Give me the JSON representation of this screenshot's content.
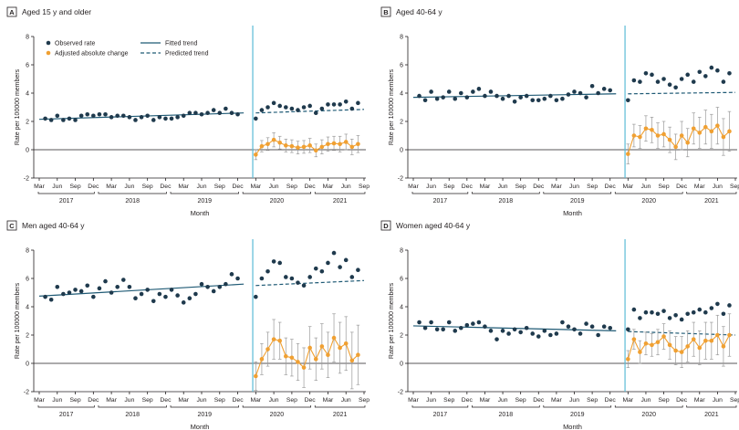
{
  "figure": {
    "legend": {
      "observed": "Observed rate",
      "adjusted": "Adjusted absolute change",
      "fitted": "Fitted trend",
      "predicted": "Predicted trend"
    },
    "colors": {
      "observed": "#1f3a4d",
      "adjusted": "#f0a032",
      "trend": "#1f5a75",
      "cutoff": "#5bbbd6",
      "error": "#9a9a9a",
      "panel_letter_bg": "#ffffff"
    }
  },
  "chart_data": [
    {
      "type": "scatter",
      "letter": "A",
      "title": "Aged 15 y and older",
      "ylabel": "Rate per 100000 members",
      "xlabel": "Month",
      "ylim": [
        -2,
        8
      ],
      "yticks": [
        "-2",
        "0",
        "2",
        "4",
        "6",
        "8"
      ],
      "month_ticks": [
        "Mar",
        "Jun",
        "Sep",
        "Dec",
        "Mar",
        "Jun",
        "Sep",
        "Dec",
        "Mar",
        "Jun",
        "Sep",
        "Dec",
        "Mar",
        "Jun",
        "Sep",
        "Dec",
        "Mar",
        "Jun",
        "Sep"
      ],
      "years": [
        "2017",
        "2018",
        "2019",
        "2020",
        "2021"
      ],
      "observed": [
        2.2,
        2.1,
        2.4,
        2.1,
        2.2,
        2.1,
        2.4,
        2.5,
        2.4,
        2.5,
        2.5,
        2.3,
        2.4,
        2.4,
        2.3,
        2.1,
        2.3,
        2.4,
        2.1,
        2.3,
        2.2,
        2.2,
        2.3,
        2.4,
        2.6,
        2.6,
        2.5,
        2.6,
        2.8,
        2.6,
        2.9,
        2.6,
        2.5,
        2.2,
        2.8,
        3.0,
        3.3,
        3.1,
        3.0,
        2.9,
        2.8,
        3.0,
        3.1,
        2.6,
        2.9,
        3.2,
        3.2,
        3.2,
        3.4,
        2.9,
        3.3
      ],
      "fitted": [
        2.15,
        2.6
      ],
      "predicted": [
        2.6,
        2.85
      ],
      "adjusted": [
        -0.35,
        0.25,
        0.4,
        0.7,
        0.5,
        0.3,
        0.25,
        0.15,
        0.2,
        0.3,
        -0.05,
        0.2,
        0.4,
        0.45,
        0.4,
        0.55,
        0.2,
        0.4
      ],
      "adjusted_err": [
        0.35,
        0.4,
        0.45,
        0.5,
        0.45,
        0.45,
        0.45,
        0.45,
        0.45,
        0.5,
        0.45,
        0.5,
        0.5,
        0.5,
        0.55,
        0.55,
        0.55,
        0.6
      ]
    },
    {
      "type": "scatter",
      "letter": "B",
      "title": "Aged 40-64 y",
      "ylabel": "Rate per 100000 members",
      "xlabel": "Month",
      "ylim": [
        -2,
        8
      ],
      "yticks": [
        "-2",
        "0",
        "2",
        "4",
        "6",
        "8"
      ],
      "month_ticks": [
        "Mar",
        "Jun",
        "Sep",
        "Dec",
        "Mar",
        "Jun",
        "Sep",
        "Dec",
        "Mar",
        "Jun",
        "Sep",
        "Dec",
        "Mar",
        "Jun",
        "Sep",
        "Dec",
        "Mar",
        "Jun",
        "Sep"
      ],
      "years": [
        "2017",
        "2018",
        "2019",
        "2020",
        "2021"
      ],
      "observed": [
        3.8,
        3.5,
        4.1,
        3.6,
        3.7,
        4.1,
        3.6,
        4.0,
        3.7,
        4.1,
        4.3,
        3.8,
        4.1,
        3.8,
        3.6,
        3.8,
        3.4,
        3.7,
        3.8,
        3.5,
        3.5,
        3.6,
        3.8,
        3.5,
        3.6,
        3.9,
        4.1,
        4.0,
        3.7,
        4.5,
        4.0,
        4.3,
        4.2,
        3.5,
        4.9,
        4.8,
        5.4,
        5.3,
        4.8,
        5.0,
        4.6,
        4.4,
        5.0,
        5.3,
        4.8,
        5.5,
        5.2,
        5.8,
        5.6,
        4.8,
        5.4
      ],
      "fitted": [
        3.7,
        3.95
      ],
      "predicted": [
        3.95,
        4.05
      ],
      "adjusted": [
        -0.3,
        1.0,
        0.9,
        1.5,
        1.4,
        1.0,
        1.1,
        0.7,
        0.2,
        1.0,
        0.5,
        1.5,
        1.2,
        1.6,
        1.3,
        1.7,
        0.9,
        1.3
      ],
      "adjusted_err": [
        0.7,
        0.8,
        0.8,
        0.9,
        0.9,
        0.9,
        0.9,
        0.9,
        0.9,
        1.0,
        1.0,
        1.1,
        1.1,
        1.2,
        1.2,
        1.3,
        1.3,
        1.4
      ]
    },
    {
      "type": "scatter",
      "letter": "C",
      "title": "Men aged 40-64 y",
      "ylabel": "Rate per 100000 members",
      "xlabel": "Month",
      "ylim": [
        -2,
        8
      ],
      "yticks": [
        "-2",
        "0",
        "2",
        "4",
        "6",
        "8"
      ],
      "month_ticks": [
        "Mar",
        "Jun",
        "Sep",
        "Dec",
        "Mar",
        "Jun",
        "Sep",
        "Dec",
        "Mar",
        "Jun",
        "Sep",
        "Dec",
        "Mar",
        "Jun",
        "Sep",
        "Dec",
        "Mar",
        "Jun",
        "Sep"
      ],
      "years": [
        "2017",
        "2018",
        "2019",
        "2020",
        "2021"
      ],
      "observed": [
        4.7,
        4.5,
        5.4,
        4.9,
        5.0,
        5.2,
        5.1,
        5.5,
        4.7,
        5.3,
        5.8,
        5.0,
        5.4,
        5.9,
        5.4,
        4.6,
        4.9,
        5.2,
        4.4,
        4.9,
        4.7,
        5.2,
        4.8,
        4.3,
        4.6,
        4.9,
        5.6,
        5.4,
        5.1,
        5.4,
        5.6,
        6.3,
        6.0,
        4.7,
        6.0,
        6.5,
        7.2,
        7.1,
        6.1,
        6.0,
        5.7,
        5.5,
        6.1,
        6.7,
        6.5,
        7.1,
        7.8,
        6.8,
        7.3,
        6.1,
        6.6
      ],
      "fitted": [
        4.75,
        5.6
      ],
      "predicted": [
        5.5,
        5.85
      ],
      "adjusted": [
        -0.9,
        0.3,
        1.0,
        1.7,
        1.6,
        0.5,
        0.4,
        0.1,
        -0.3,
        1.1,
        0.3,
        1.2,
        0.6,
        1.8,
        1.1,
        1.4,
        0.2,
        0.6
      ],
      "adjusted_err": [
        1.0,
        1.1,
        1.2,
        1.4,
        1.3,
        1.3,
        1.3,
        1.3,
        1.4,
        1.5,
        1.5,
        1.6,
        1.6,
        1.7,
        1.8,
        1.9,
        2.0,
        2.1
      ]
    },
    {
      "type": "scatter",
      "letter": "D",
      "title": "Women aged 40-64 y",
      "ylabel": "Rate per 100000 members",
      "xlabel": "Month",
      "ylim": [
        -2,
        8
      ],
      "yticks": [
        "-2",
        "0",
        "2",
        "4",
        "6",
        "8"
      ],
      "month_ticks": [
        "Mar",
        "Jun",
        "Sep",
        "Dec",
        "Mar",
        "Jun",
        "Sep",
        "Dec",
        "Mar",
        "Jun",
        "Sep",
        "Dec",
        "Mar",
        "Jun",
        "Sep",
        "Dec",
        "Mar",
        "Jun",
        "Sep"
      ],
      "years": [
        "2017",
        "2018",
        "2019",
        "2020",
        "2021"
      ],
      "observed": [
        2.9,
        2.5,
        2.9,
        2.4,
        2.4,
        2.9,
        2.3,
        2.5,
        2.7,
        2.8,
        2.9,
        2.6,
        2.3,
        1.7,
        2.3,
        2.1,
        2.4,
        2.2,
        2.5,
        2.1,
        1.9,
        2.3,
        2.0,
        2.1,
        2.9,
        2.6,
        2.4,
        2.1,
        2.8,
        2.6,
        2.0,
        2.6,
        2.5,
        2.4,
        3.8,
        3.2,
        3.6,
        3.6,
        3.5,
        3.7,
        3.2,
        3.4,
        3.1,
        3.5,
        3.6,
        3.8,
        3.6,
        3.9,
        4.2,
        3.5,
        4.1
      ],
      "fitted": [
        2.65,
        2.3
      ],
      "predicted": [
        2.25,
        2.0
      ],
      "adjusted": [
        0.3,
        1.7,
        0.8,
        1.4,
        1.3,
        1.5,
        1.9,
        1.3,
        0.9,
        0.8,
        1.2,
        1.7,
        1.1,
        1.6,
        1.6,
        2.0,
        1.2,
        2.0
      ],
      "adjusted_err": [
        0.6,
        0.7,
        0.8,
        0.8,
        0.8,
        0.9,
        0.9,
        1.0,
        1.0,
        1.1,
        1.1,
        1.2,
        1.2,
        1.3,
        1.3,
        1.4,
        1.4,
        1.5
      ]
    }
  ]
}
